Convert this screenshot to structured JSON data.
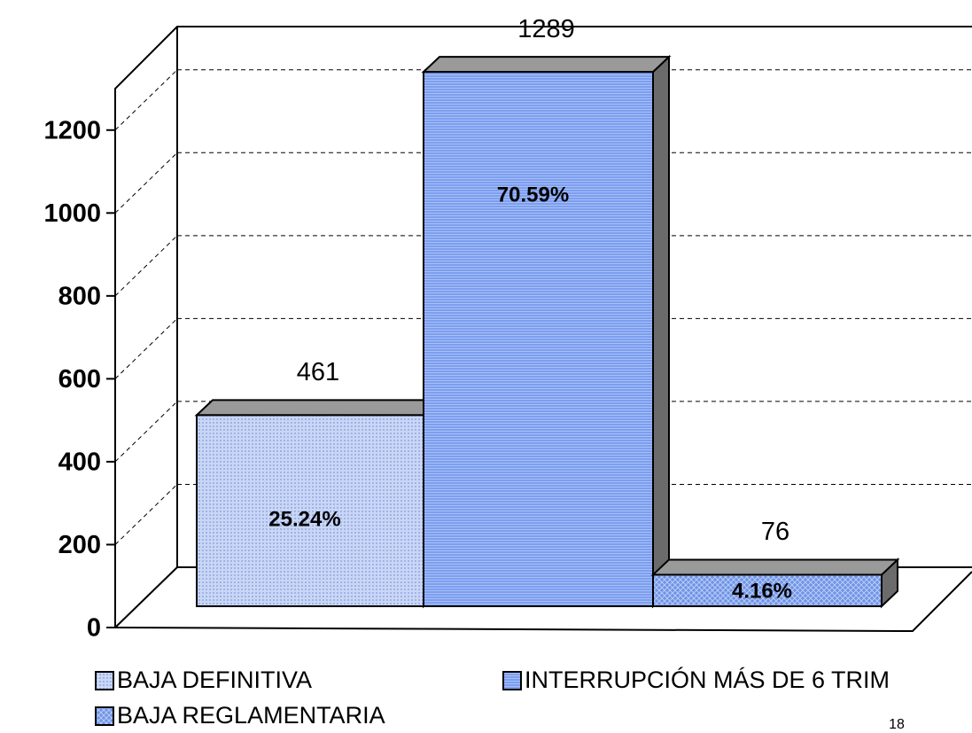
{
  "chart_data": {
    "type": "bar3d",
    "series": [
      {
        "name": "BAJA DEFINITIVA",
        "color": "#b9c9f2",
        "values": [
          461
        ],
        "share": 25.24,
        "share_label": "25.24%"
      },
      {
        "name": "INTERRUPCIÓN MÁS DE 6 TRIM",
        "color": "#7c9ef0",
        "values": [
          1289
        ],
        "share": 70.59,
        "share_label": "70.59%"
      },
      {
        "name": "BAJA REGLAMENTARIA",
        "color": "#6f94e6",
        "values": [
          76
        ],
        "share": 4.16,
        "share_label": "4.16%"
      }
    ],
    "ylim": [
      0,
      1300
    ],
    "yticks": [
      0,
      200,
      400,
      600,
      800,
      1000,
      1200
    ],
    "grid": true
  },
  "page_number": "18"
}
